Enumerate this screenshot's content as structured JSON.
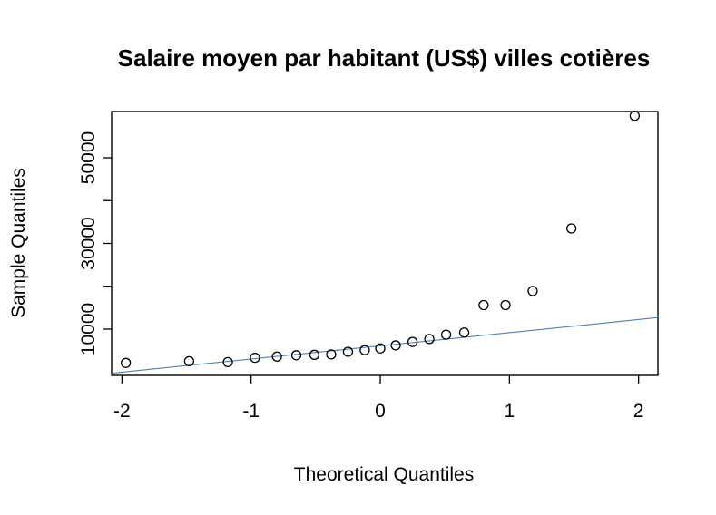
{
  "chart_data": {
    "type": "scatter",
    "title": "Salaire moyen par habitant (US$) villes cotières",
    "xlabel": "Theoretical Quantiles",
    "ylabel": "Sample Quantiles",
    "xlim": [
      -2.08,
      2.15
    ],
    "ylim": [
      -800,
      60800
    ],
    "x_ticks": [
      -2,
      -1,
      0,
      1,
      2
    ],
    "x_tick_labels": [
      "-2",
      "-1",
      "0",
      "1",
      "2"
    ],
    "y_ticks": [
      10000,
      20000,
      30000,
      40000,
      50000
    ],
    "y_tick_labels": [
      "10000",
      "",
      "30000",
      "",
      "50000"
    ],
    "grid": false,
    "points": {
      "x": [
        -1.97,
        -1.48,
        -1.18,
        -0.97,
        -0.8,
        -0.65,
        -0.51,
        -0.38,
        -0.25,
        -0.12,
        0.0,
        0.12,
        0.25,
        0.38,
        0.51,
        0.65,
        0.8,
        0.97,
        1.18,
        1.48,
        1.97
      ],
      "y": [
        2100,
        2500,
        2300,
        3300,
        3600,
        3900,
        4000,
        4100,
        4700,
        5100,
        5500,
        6200,
        7000,
        7700,
        8700,
        9200,
        15600,
        15600,
        18900,
        33500,
        59800
      ]
    },
    "reference_line": {
      "x": [
        -2.08,
        2.15
      ],
      "y": [
        -300,
        12700
      ],
      "color": "#4f7fb8"
    },
    "marker_color": "#000000",
    "axis_color": "#000000"
  }
}
